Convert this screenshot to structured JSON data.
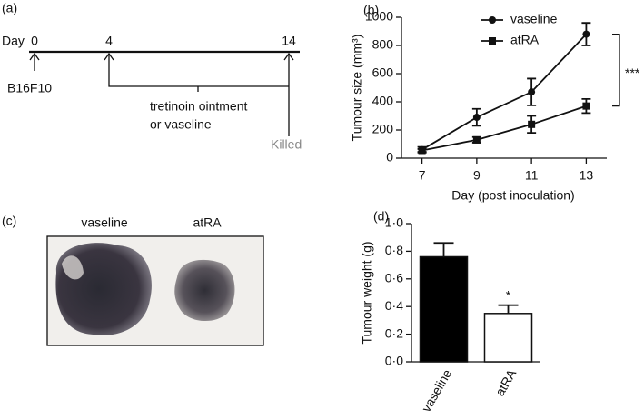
{
  "timeline": {
    "panel_label": "(a)",
    "axis_label": "Day",
    "days": [
      "0",
      "4",
      "14"
    ],
    "start_label": "B16F10",
    "treatment_lines": [
      "tretinoin ointment",
      "or vaseline"
    ],
    "end_label": "Killed"
  },
  "photo": {
    "panel_label": "(c)",
    "labels": [
      "vaseline",
      "atRA"
    ]
  },
  "chart_data": [
    {
      "type": "line",
      "panel_label": "(b)",
      "x_label": "Day (post inoculation)",
      "y_label": "Tumour size (mm³)",
      "x": [
        7,
        9,
        11,
        13
      ],
      "xlim": [
        6.25,
        13.75
      ],
      "xticks": [
        7,
        9,
        11,
        13
      ],
      "ylim": [
        0,
        1000
      ],
      "yticks": [
        0,
        200,
        400,
        600,
        800,
        1000
      ],
      "series": [
        {
          "name": "vaseline",
          "color": "#111111",
          "marker": "circle",
          "values": [
            60,
            290,
            470,
            880
          ],
          "errors": [
            20,
            60,
            95,
            80
          ]
        },
        {
          "name": "atRA",
          "color": "#111111",
          "marker": "square",
          "values": [
            55,
            130,
            240,
            370
          ],
          "errors": [
            10,
            20,
            60,
            50
          ]
        }
      ],
      "annotation": "***"
    },
    {
      "type": "bar",
      "panel_label": "(d)",
      "y_label": "Tumour weight (g)",
      "categories": [
        "vaseline",
        "atRA"
      ],
      "values": [
        0.76,
        0.35
      ],
      "errors": [
        0.1,
        0.06
      ],
      "colors": [
        "#000000",
        "#ffffff"
      ],
      "ylim": [
        0,
        1.0
      ],
      "yticks": [
        {
          "value": 0,
          "label": "0·0"
        },
        {
          "value": 0.2,
          "label": "0·2"
        },
        {
          "value": 0.4,
          "label": "0·4"
        },
        {
          "value": 0.6,
          "label": "0·6"
        },
        {
          "value": 0.8,
          "label": "0·8"
        },
        {
          "value": 1.0,
          "label": "1·0"
        }
      ],
      "annotations": [
        null,
        "*"
      ]
    }
  ]
}
